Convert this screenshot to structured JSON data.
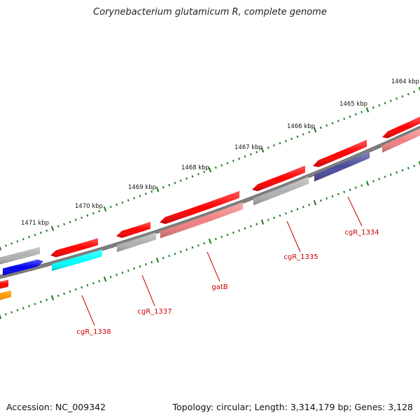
{
  "title": "Corynebacterium glutamicum R, complete genome",
  "footer": {
    "accession": "Accession: NC_009342",
    "topology": "Topology: circular; Length: 3,314,179 bp; Genes: 3,128"
  },
  "scale": {
    "ticks": [
      {
        "label": "1464 kbp",
        "kbp": 1464
      },
      {
        "label": "1465 kbp",
        "kbp": 1465
      },
      {
        "label": "1466 kbp",
        "kbp": 1466
      },
      {
        "label": "1467 kbp",
        "kbp": 1467
      },
      {
        "label": "1468 kbp",
        "kbp": 1468
      },
      {
        "label": "1469 kbp",
        "kbp": 1469
      },
      {
        "label": "1470 kbp",
        "kbp": 1470
      },
      {
        "label": "1471 kbp",
        "kbp": 1471
      }
    ]
  },
  "colors": {
    "backbone": "#808080",
    "tick": "#1a7a1a",
    "label_line": "#cc0000",
    "label_text": "#cc0000",
    "gene_red": "#ff0000",
    "gene_pink": "#f08080",
    "gene_gray": "#b0b0b0",
    "gene_blue": "#0000ee",
    "gene_cyan": "#00ffff",
    "gene_navy": "#4b4b9c",
    "gene_orange": "#ff9900"
  },
  "gene_labels": [
    {
      "name": "cgR_1334"
    },
    {
      "name": "cgR_1335"
    },
    {
      "name": "gatB"
    },
    {
      "name": "cgR_1337"
    },
    {
      "name": "cgR_1338"
    }
  ]
}
